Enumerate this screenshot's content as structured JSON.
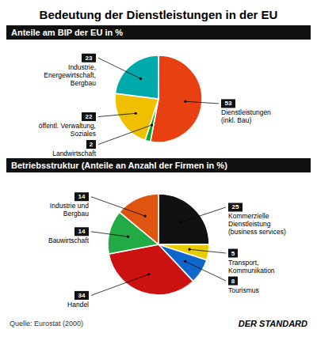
{
  "title": "Bedeutung der Dienstleistungen in der EU",
  "annotations": [
    "Quelle: Eurostat (2000)",
    "DER STANDARD"
  ],
  "chart_data": [
    {
      "type": "pie",
      "title": "Anteile am BIP der EU in %",
      "categories": [
        "Dienstleistungen\n(inkl. Bau)",
        "Landwirtschaft",
        "öffentl. Verwaltung,\nSoziales",
        "Industrie,\nEnergewirtschaft,\nBergbau"
      ],
      "values": [
        53,
        2,
        22,
        23
      ],
      "colors": [
        "#e84010",
        "#00aa33",
        "#f0c000",
        "#00aaaa"
      ],
      "data_labels": true
    },
    {
      "type": "pie",
      "title": "Betriebsstruktur (Anteile an Anzahl der Firmen in %)",
      "categories": [
        "Kommerzielle\nDienstleistung\n(business services)",
        "Transport,\nKommunikation",
        "Tourismus",
        "Handel",
        "Bauwirtschaft",
        "Industrie und\nBergbau"
      ],
      "values": [
        25,
        5,
        8,
        34,
        14,
        14
      ],
      "colors": [
        "#111111",
        "#e8cc00",
        "#1166cc",
        "#cc1111",
        "#22aa44",
        "#dd5511"
      ],
      "data_labels": true
    }
  ]
}
